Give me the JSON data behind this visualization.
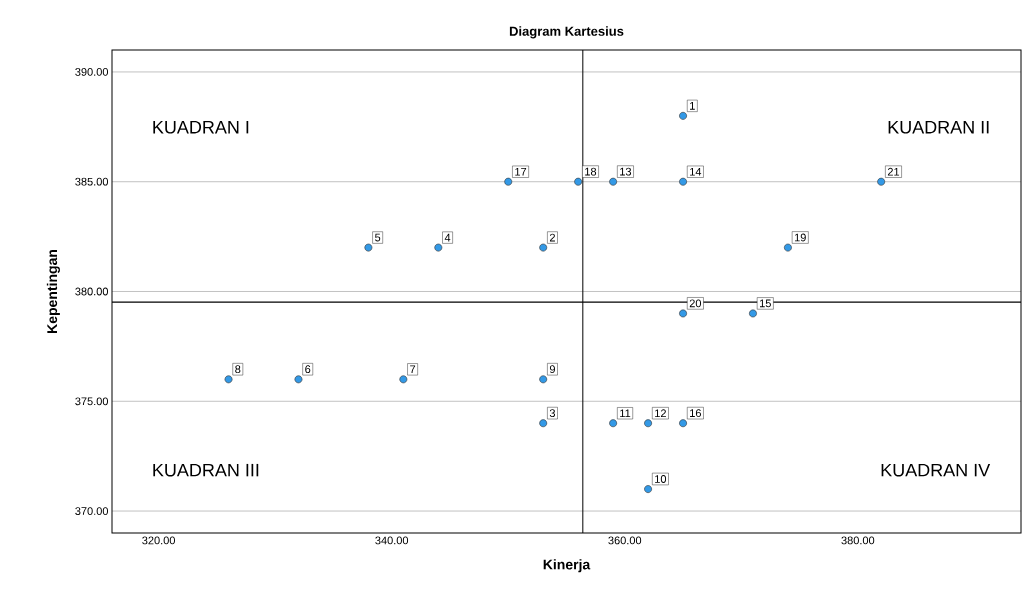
{
  "chart_data": {
    "type": "scatter",
    "title": "Diagram Kartesius",
    "xlabel": "Kinerja",
    "ylabel": "Kepentingan",
    "x": [
      365,
      353,
      353,
      344,
      338,
      332,
      341,
      326,
      353,
      362,
      359,
      362,
      359,
      365,
      371,
      365,
      350,
      356,
      374,
      365,
      382
    ],
    "values": [
      388,
      382,
      374,
      382,
      382,
      376,
      376,
      376,
      376,
      371,
      374,
      374,
      385,
      385,
      379,
      374,
      385,
      385,
      382,
      379,
      385
    ],
    "color": "#3399e6",
    "marker": "circle",
    "grid": "y",
    "xlim": [
      316,
      394
    ],
    "ylim": [
      369,
      391
    ],
    "xticks": [
      {
        "value": 320,
        "label": "320.00"
      },
      {
        "value": 340,
        "label": "340.00"
      },
      {
        "value": 360,
        "label": "360.00"
      },
      {
        "value": 380,
        "label": "380.00"
      }
    ],
    "yticks": [
      {
        "value": 370,
        "label": "370.00"
      },
      {
        "value": 375,
        "label": "375.00"
      },
      {
        "value": 380,
        "label": "380.00"
      },
      {
        "value": 385,
        "label": "385.00"
      },
      {
        "value": 390,
        "label": "390.00"
      }
    ],
    "ref_lines": [
      {
        "axis": "x",
        "value": 356.4,
        "color": "#000000"
      },
      {
        "axis": "y",
        "value": 379.52,
        "color": "#000000"
      }
    ],
    "annotations": [
      "KUADRAN I",
      "KUADRAN II",
      "KUADRAN III",
      "KUADRAN IV",
      {
        "text": "1",
        "x": 365,
        "y": 388
      },
      {
        "text": "2",
        "x": 353,
        "y": 382
      },
      {
        "text": "3",
        "x": 353,
        "y": 374
      },
      {
        "text": "4",
        "x": 344,
        "y": 382
      },
      {
        "text": "5",
        "x": 338,
        "y": 382
      },
      {
        "text": "6",
        "x": 332,
        "y": 376
      },
      {
        "text": "7",
        "x": 341,
        "y": 376
      },
      {
        "text": "8",
        "x": 326,
        "y": 376
      },
      {
        "text": "9",
        "x": 353,
        "y": 376
      },
      {
        "text": "10",
        "x": 362,
        "y": 371
      },
      {
        "text": "11",
        "x": 359,
        "y": 374
      },
      {
        "text": "12",
        "x": 362,
        "y": 374
      },
      {
        "text": "13",
        "x": 359,
        "y": 385
      },
      {
        "text": "14",
        "x": 365,
        "y": 385
      },
      {
        "text": "15",
        "x": 371,
        "y": 379
      },
      {
        "text": "16",
        "x": 365,
        "y": 374
      },
      {
        "text": "17",
        "x": 350,
        "y": 385
      },
      {
        "text": "18",
        "x": 356,
        "y": 385
      },
      {
        "text": "19",
        "x": 374,
        "y": 382
      },
      {
        "text": "20",
        "x": 365,
        "y": 379
      },
      {
        "text": "21",
        "x": 382,
        "y": 385
      }
    ]
  }
}
